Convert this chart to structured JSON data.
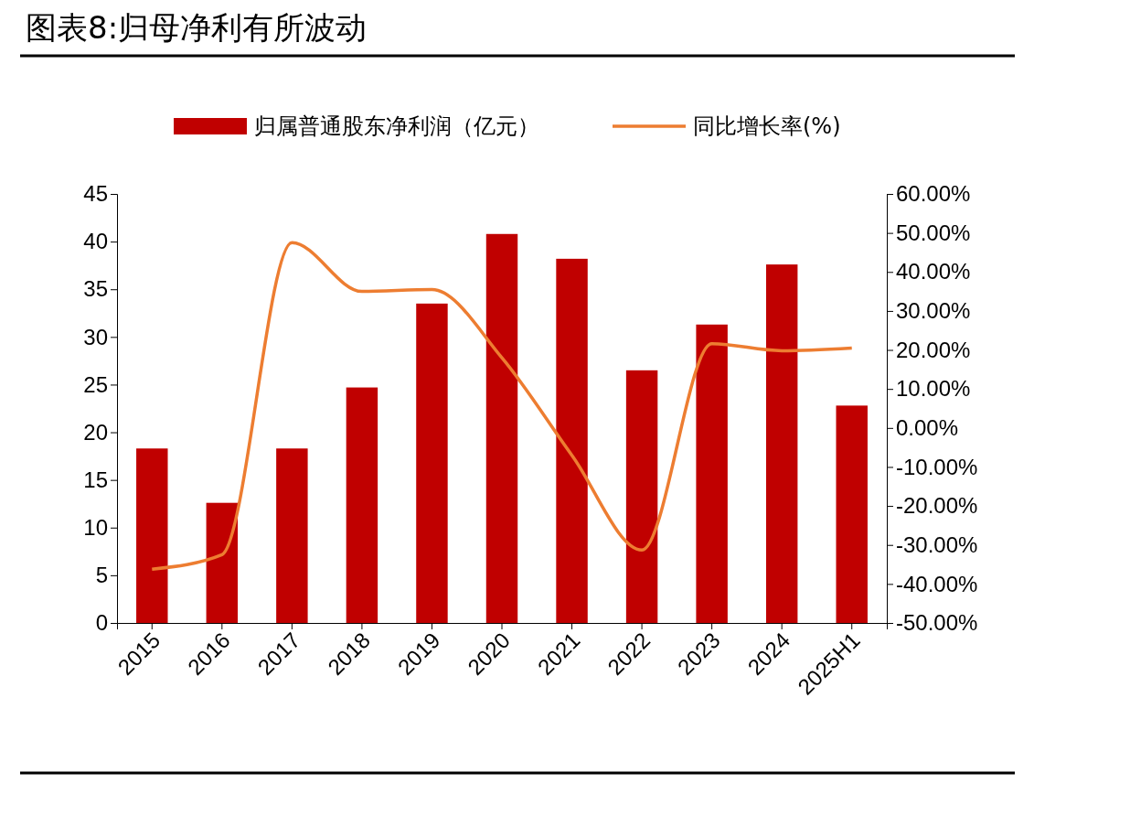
{
  "chart_data": {
    "type": "bar",
    "title": "图表8:归母净利有所波动",
    "categories": [
      "2015",
      "2016",
      "2017",
      "2018",
      "2019",
      "2020",
      "2021",
      "2022",
      "2023",
      "2024",
      "2025H1"
    ],
    "series": [
      {
        "name": "归属普通股东净利润（亿元）",
        "color": "#c00000",
        "values": [
          18.3,
          12.6,
          18.3,
          24.7,
          33.5,
          40.8,
          38.2,
          26.5,
          31.3,
          37.6,
          22.8
        ]
      },
      {
        "name": "同比增长率(%)",
        "type": "line",
        "axis": "y2",
        "color": "#ed7d31",
        "values": [
          -36.2,
          -32.5,
          47.5,
          35,
          35.5,
          18,
          -7,
          -31.3,
          21.6,
          19.8,
          20.5
        ]
      }
    ],
    "ylim": [
      0,
      45
    ],
    "yticks": [
      0,
      5,
      10,
      15,
      20,
      25,
      30,
      35,
      40,
      45
    ],
    "y2lim": [
      -50,
      60
    ],
    "y2ticks": [
      {
        "value": -50,
        "label": "-50.00%"
      },
      {
        "value": -40,
        "label": "-40.00%"
      },
      {
        "value": -30,
        "label": "-30.00%"
      },
      {
        "value": -20,
        "label": "-20.00%"
      },
      {
        "value": -10,
        "label": "-10.00%"
      },
      {
        "value": 0,
        "label": "0.00%"
      },
      {
        "value": 10,
        "label": "10.00%"
      },
      {
        "value": 20,
        "label": "20.00%"
      },
      {
        "value": 30,
        "label": "30.00%"
      },
      {
        "value": 40,
        "label": "40.00%"
      },
      {
        "value": 50,
        "label": "50.00%"
      },
      {
        "value": 60,
        "label": "60.00%"
      }
    ],
    "legend": "top",
    "grid": false,
    "marker": "none",
    "line_style": "solid"
  }
}
